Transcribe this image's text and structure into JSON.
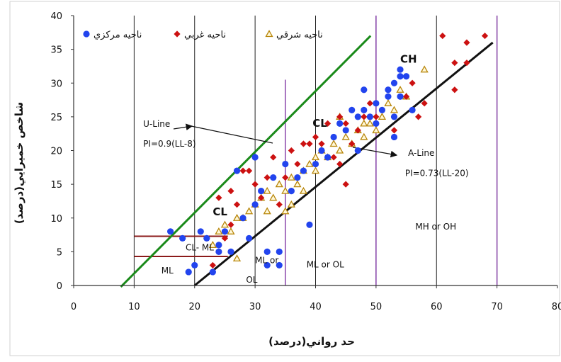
{
  "chart_data": {
    "type": "scatter",
    "title": "",
    "xlabel": "حد رواني(درصد)",
    "ylabel": "شاخص خميرايي(درصد)",
    "xlim": [
      0,
      80
    ],
    "ylim": [
      0,
      40
    ],
    "xticks": [
      "0",
      "10",
      "20",
      "30",
      "40",
      "50",
      "60",
      "70",
      "80"
    ],
    "yticks": [
      "0",
      "5",
      "10",
      "15",
      "20",
      "25",
      "30",
      "35",
      "40"
    ],
    "grid": "vertical",
    "legend_position": "top-left",
    "legend": [
      {
        "label": "ناحيه مركزي",
        "marker": "circle",
        "color": "#2244ee"
      },
      {
        "label": "ناحيه غربي",
        "marker": "diamond",
        "color": "#cc1111"
      },
      {
        "label": "ناحيه شرقي",
        "marker": "triangle",
        "color": "#b8860b"
      }
    ],
    "series": [
      {
        "name": "ناحيه مركزي",
        "marker": "circle",
        "color": "#2244ee",
        "points": [
          [
            16,
            8
          ],
          [
            18,
            7
          ],
          [
            19,
            2
          ],
          [
            20,
            3
          ],
          [
            21,
            8
          ],
          [
            22,
            7
          ],
          [
            23,
            2
          ],
          [
            24,
            5
          ],
          [
            24,
            6
          ],
          [
            25,
            8
          ],
          [
            26,
            5
          ],
          [
            27,
            17
          ],
          [
            28,
            10
          ],
          [
            29,
            7
          ],
          [
            30,
            19
          ],
          [
            30,
            12
          ],
          [
            31,
            14
          ],
          [
            32,
            5
          ],
          [
            32,
            3
          ],
          [
            33,
            16
          ],
          [
            34,
            5
          ],
          [
            34,
            3
          ],
          [
            35,
            18
          ],
          [
            36,
            14
          ],
          [
            37,
            16
          ],
          [
            38,
            17
          ],
          [
            39,
            9
          ],
          [
            40,
            18
          ],
          [
            41,
            20
          ],
          [
            42,
            19
          ],
          [
            43,
            22
          ],
          [
            44,
            24
          ],
          [
            45,
            23
          ],
          [
            46,
            26
          ],
          [
            47,
            25
          ],
          [
            48,
            29
          ],
          [
            48,
            26
          ],
          [
            49,
            25
          ],
          [
            50,
            27
          ],
          [
            51,
            26
          ],
          [
            52,
            28
          ],
          [
            52,
            29
          ],
          [
            53,
            30
          ],
          [
            53,
            25
          ],
          [
            54,
            32
          ],
          [
            54,
            31
          ],
          [
            55,
            31
          ],
          [
            53,
            22
          ],
          [
            54,
            28
          ],
          [
            56,
            26
          ],
          [
            47,
            20
          ],
          [
            50,
            24
          ]
        ]
      },
      {
        "name": "ناحيه غربي",
        "marker": "diamond",
        "color": "#cc1111",
        "points": [
          [
            22,
            7
          ],
          [
            23,
            3
          ],
          [
            25,
            7
          ],
          [
            26,
            9
          ],
          [
            27,
            12
          ],
          [
            28,
            17
          ],
          [
            30,
            15
          ],
          [
            31,
            13
          ],
          [
            32,
            16
          ],
          [
            33,
            19
          ],
          [
            34,
            12
          ],
          [
            35,
            16
          ],
          [
            36,
            20
          ],
          [
            37,
            18
          ],
          [
            38,
            21
          ],
          [
            39,
            21
          ],
          [
            40,
            22
          ],
          [
            41,
            21
          ],
          [
            42,
            24
          ],
          [
            43,
            22
          ],
          [
            44,
            25
          ],
          [
            45,
            15
          ],
          [
            45,
            24
          ],
          [
            46,
            26
          ],
          [
            47,
            23
          ],
          [
            48,
            25
          ],
          [
            49,
            27
          ],
          [
            50,
            25
          ],
          [
            51,
            26
          ],
          [
            52,
            29
          ],
          [
            53,
            23
          ],
          [
            55,
            28
          ],
          [
            56,
            30
          ],
          [
            57,
            25
          ],
          [
            58,
            27
          ],
          [
            61,
            37
          ],
          [
            63,
            33
          ],
          [
            63,
            29
          ],
          [
            65,
            33
          ],
          [
            65,
            36
          ],
          [
            68,
            37
          ],
          [
            24,
            13
          ],
          [
            26,
            14
          ],
          [
            29,
            17
          ],
          [
            43,
            19
          ],
          [
            44,
            18
          ],
          [
            46,
            21
          ]
        ]
      },
      {
        "name": "ناحيه شرقي",
        "marker": "triangle",
        "color": "#b8860b",
        "points": [
          [
            23,
            6
          ],
          [
            24,
            8
          ],
          [
            25,
            9
          ],
          [
            26,
            8
          ],
          [
            27,
            10
          ],
          [
            28,
            10
          ],
          [
            29,
            11
          ],
          [
            30,
            12
          ],
          [
            31,
            13
          ],
          [
            32,
            14
          ],
          [
            32,
            11
          ],
          [
            33,
            13
          ],
          [
            34,
            15
          ],
          [
            35,
            14
          ],
          [
            35,
            11
          ],
          [
            36,
            16
          ],
          [
            37,
            15
          ],
          [
            38,
            17
          ],
          [
            38,
            14
          ],
          [
            39,
            18
          ],
          [
            40,
            17
          ],
          [
            40,
            19
          ],
          [
            41,
            20
          ],
          [
            42,
            19
          ],
          [
            43,
            21
          ],
          [
            44,
            20
          ],
          [
            44,
            25
          ],
          [
            45,
            22
          ],
          [
            46,
            21
          ],
          [
            47,
            23
          ],
          [
            48,
            22
          ],
          [
            48,
            24
          ],
          [
            49,
            24
          ],
          [
            50,
            23
          ],
          [
            51,
            25
          ],
          [
            52,
            27
          ],
          [
            53,
            26
          ],
          [
            54,
            29
          ],
          [
            55,
            28
          ],
          [
            58,
            32
          ],
          [
            27,
            4
          ],
          [
            36,
            12
          ]
        ]
      }
    ],
    "reference_lines": [
      {
        "name": "U-Line",
        "equation": "PI=0.9(LL-8)",
        "color": "#1a8a1a",
        "x": [
          7.8,
          49.1
        ],
        "y": [
          -0.2,
          37
        ]
      },
      {
        "name": "A-Line",
        "equation": "PI=0.73(LL-20)",
        "color": "#111111",
        "x": [
          20,
          69.3
        ],
        "y": [
          0,
          36
        ]
      }
    ],
    "zone_boundaries": [
      {
        "x": 35,
        "y_range": [
          0,
          30.5
        ],
        "color": "#8844aa"
      },
      {
        "x": 50,
        "y_range": [
          0,
          40
        ],
        "color": "#8844aa"
      },
      {
        "x": 70,
        "y_range": [
          0,
          40
        ],
        "color": "#8844aa"
      }
    ],
    "small_boundaries": [
      {
        "y": 7.3,
        "x_range": [
          10,
          25.5
        ],
        "color": "#8b1a1a"
      },
      {
        "y": 4.3,
        "x_range": [
          10,
          25.5
        ],
        "color": "#8b1a1a"
      }
    ],
    "annotations": [
      {
        "text": "CH",
        "x": 54,
        "y": 33,
        "size": 15,
        "bold": true
      },
      {
        "text": "CL",
        "x": 39.5,
        "y": 23.5,
        "size": 15,
        "bold": true
      },
      {
        "text": "CL",
        "x": 23,
        "y": 10.4,
        "size": 15,
        "bold": true
      },
      {
        "text": "CL- ML",
        "x": 18.5,
        "y": 5.2,
        "size": 12,
        "bold": false
      },
      {
        "text": "ML",
        "x": 14.5,
        "y": 1.8,
        "size": 12,
        "bold": false
      },
      {
        "text": "ML or",
        "x": 30,
        "y": 3.3,
        "size": 12,
        "bold": false
      },
      {
        "text": "OL",
        "x": 28.5,
        "y": 0.4,
        "size": 12,
        "bold": false
      },
      {
        "text": "ML or OL",
        "x": 38.5,
        "y": 2.7,
        "size": 12,
        "bold": false
      },
      {
        "text": "MH or OH",
        "x": 56.5,
        "y": 8.3,
        "size": 12,
        "bold": false
      },
      {
        "text": "U-Line",
        "x": 11.5,
        "y": 23.5,
        "size": 12,
        "bold": false
      },
      {
        "text": "PI=0.9(LL-8)",
        "x": 11.5,
        "y": 20.6,
        "size": 12,
        "bold": false
      },
      {
        "text": "A-Line",
        "x": 55.3,
        "y": 19.2,
        "size": 12,
        "bold": false
      },
      {
        "text": "PI=0.73(LL-20)",
        "x": 54.8,
        "y": 16.2,
        "size": 12,
        "bold": false
      }
    ]
  }
}
